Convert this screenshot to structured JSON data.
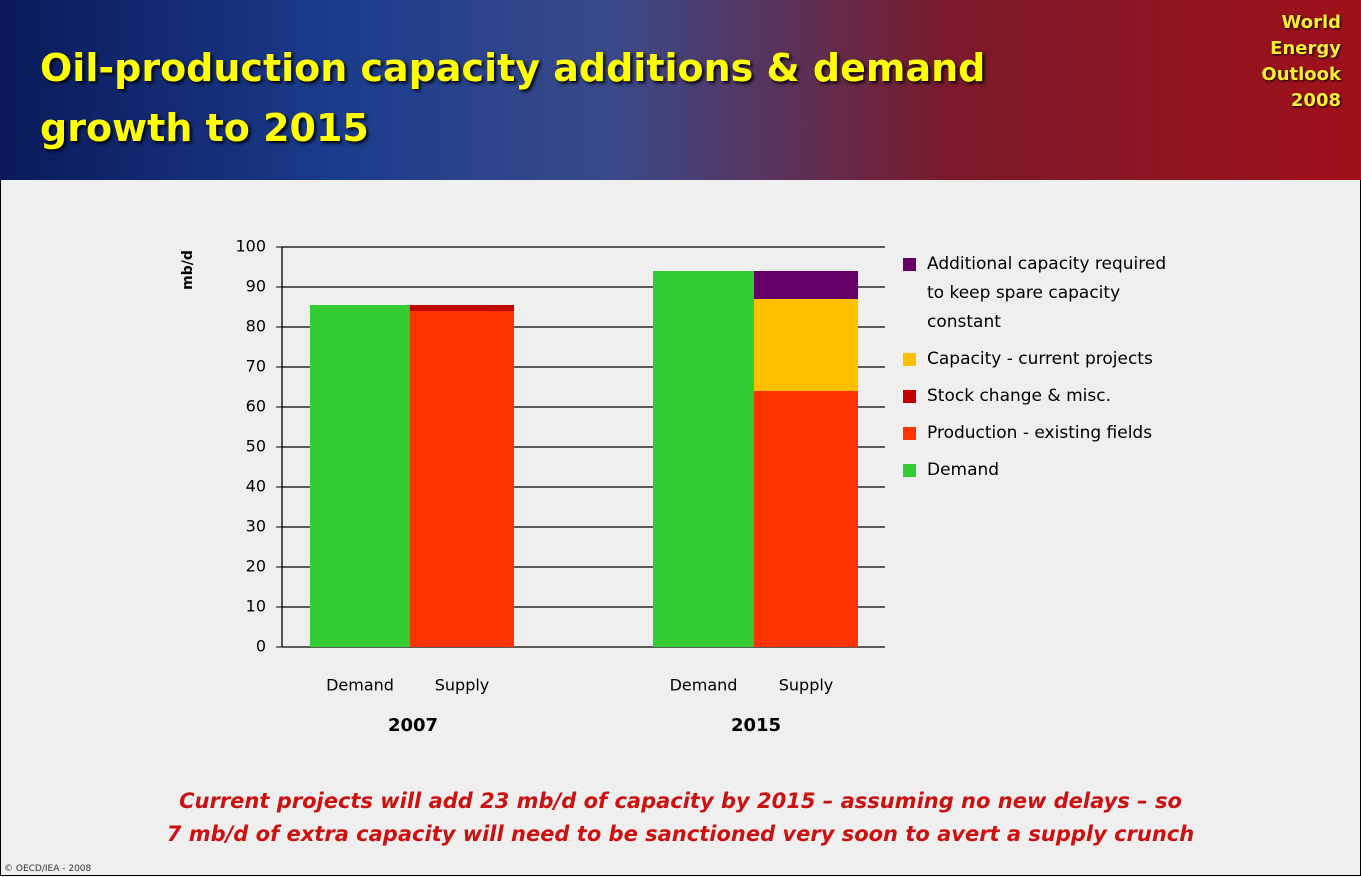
{
  "title": "Oil-production capacity additions & demand growth to 2015",
  "logo": "World Energy Outlook 2008",
  "chart_data": {
    "type": "stacked-bar",
    "ylabel": "mb/d",
    "groups": [
      "2007",
      "2015"
    ],
    "categories": [
      "Demand",
      "Supply",
      "Demand",
      "Supply"
    ],
    "series": [
      {
        "name": "Additional capacity required to keep spare capacity constant",
        "color": "#660066",
        "values": [
          null,
          null,
          null,
          7
        ]
      },
      {
        "name": "Capacity - current projects",
        "color": "#ffc000",
        "values": [
          null,
          null,
          null,
          23
        ]
      },
      {
        "name": "Stock change & misc.",
        "color": "#c00000",
        "values": [
          null,
          1.5,
          null,
          null
        ]
      },
      {
        "name": "Production - existing fields",
        "color": "#ff3300",
        "values": [
          null,
          84,
          null,
          64
        ]
      },
      {
        "name": "Demand",
        "color": "#33cc33",
        "values": [
          85.5,
          null,
          94,
          null
        ]
      }
    ],
    "ylim": [
      0,
      100
    ],
    "yticks": [
      0,
      10,
      20,
      30,
      40,
      50,
      60,
      70,
      80,
      90,
      100
    ],
    "grid": true
  },
  "footnote": [
    "Current projects will add 23 mb/d of capacity by 2015 – assuming no new delays – so",
    "7 mb/d of extra capacity will need to be sanctioned very soon to avert a supply crunch"
  ],
  "copyright": "© OECD/IEA - 2008"
}
